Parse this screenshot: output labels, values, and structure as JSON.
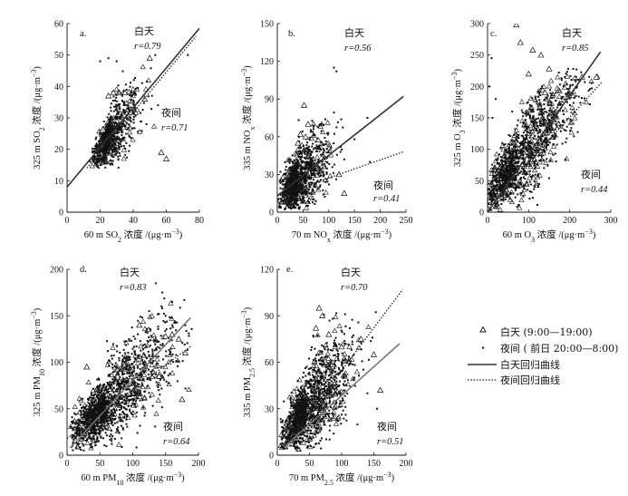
{
  "legend": {
    "day_marker_label": "白天 (9:00—19:00)",
    "night_marker_label": "夜间 ( 前日 20:00—8:00)",
    "day_line_label": "白天回归曲线",
    "night_line_label": "夜间回归曲线",
    "day_marker_icon": "triangle-open-icon",
    "night_marker_icon": "small-square-dot-icon"
  },
  "colors": {
    "day_line": "#333333",
    "night_line": "#222222",
    "marker": "#111111"
  },
  "chart_data": [
    {
      "type": "scatter",
      "panel_label": "a.",
      "xlabel": "60 m SO₂ 浓度 /(μg·m⁻³)",
      "xlabel_parts": {
        "pre": "60 m SO",
        "sub": "2",
        "post": " 浓度 /(μg·m",
        "sup": "−3",
        "end": ")"
      },
      "ylabel": "325 m SO₂ 浓度 /(μg·m⁻³)",
      "ylabel_parts": {
        "pre": "325 m SO",
        "sub": "2",
        "post": " 浓度 /(μg·m",
        "sup": "−3",
        "end": ")"
      },
      "xlim": [
        0,
        80
      ],
      "ylim": [
        0,
        60
      ],
      "xticks": [
        "0",
        "20",
        "40",
        "60",
        "80"
      ],
      "yticks": [
        "0",
        "10",
        "20",
        "30",
        "40",
        "50",
        "60"
      ],
      "day_label": "白天",
      "day_r": "r=0.79",
      "night_label": "夜间",
      "night_r": "r=0.71",
      "day_fit": {
        "x0": 0,
        "y0": 8,
        "x1": 80,
        "y1": 58.5
      },
      "night_fit": {
        "x0": 12,
        "y0": 14,
        "x1": 78,
        "y1": 56
      },
      "cloud": {
        "cx": 26,
        "cy": 24,
        "sx": 6,
        "sy": 5,
        "rho": 0.7,
        "n_night": 520,
        "n_day": 160,
        "xmin": 13,
        "xmax": 60,
        "ymin": 14,
        "ymax": 50
      },
      "outliers_day": [
        [
          50,
          49
        ],
        [
          25,
          37
        ],
        [
          47,
          36
        ],
        [
          60,
          17
        ],
        [
          57,
          19
        ],
        [
          28,
          38
        ],
        [
          35,
          38
        ]
      ],
      "outliers_night": [
        [
          25,
          49
        ],
        [
          30,
          48
        ],
        [
          73,
          50
        ],
        [
          55,
          34
        ],
        [
          48,
          28
        ],
        [
          20,
          48
        ]
      ]
    },
    {
      "type": "scatter",
      "panel_label": "b.",
      "xlabel": "70 m NOₓ 浓度 /(μg·m⁻³)",
      "xlabel_parts": {
        "pre": "70 m NO",
        "sub": "x",
        "post": " 浓度 /(μg·m",
        "sup": "−3",
        "end": ")"
      },
      "ylabel": "335 m NOₓ 浓度 /(μg·m⁻³)",
      "ylabel_parts": {
        "pre": "335 m NO",
        "sub": "x",
        "post": " 浓度 /(μg·m",
        "sup": "−3",
        "end": ")"
      },
      "xlim": [
        0,
        250
      ],
      "ylim": [
        0,
        150
      ],
      "xticks": [
        "0",
        "50",
        "100",
        "150",
        "200",
        "250"
      ],
      "yticks": [
        "0",
        "30",
        "60",
        "90",
        "120",
        "150"
      ],
      "day_label": "白天",
      "day_r": "r=0.56",
      "night_label": "夜间",
      "night_r": "r=0.41",
      "day_fit": {
        "x0": 0,
        "y0": 13,
        "x1": 245,
        "y1": 92
      },
      "night_fit": {
        "x0": 0,
        "y0": 13,
        "x1": 245,
        "y1": 48
      },
      "cloud": {
        "cx": 40,
        "cy": 25,
        "sx": 20,
        "sy": 12,
        "rho": 0.55,
        "n_night": 750,
        "n_day": 220,
        "xmin": 2,
        "xmax": 160,
        "ymin": 2,
        "ymax": 80
      },
      "outliers_day": [
        [
          52,
          85
        ],
        [
          60,
          70
        ],
        [
          45,
          62
        ],
        [
          55,
          60
        ],
        [
          40,
          55
        ],
        [
          130,
          15
        ],
        [
          120,
          30
        ]
      ],
      "outliers_night": [
        [
          110,
          115
        ],
        [
          115,
          112
        ],
        [
          175,
          75
        ],
        [
          150,
          58
        ],
        [
          100,
          48
        ],
        [
          130,
          42
        ],
        [
          180,
          40
        ]
      ]
    },
    {
      "type": "scatter",
      "panel_label": "c.",
      "xlabel": "60 m O₃ 浓度 /(μg·m⁻³)",
      "xlabel_parts": {
        "pre": "60 m O",
        "sub": "3",
        "post": " 浓度 /(μg·m",
        "sup": "−3",
        "end": ")"
      },
      "ylabel": "325 m O₃ 浓度 /(μg·m⁻³)",
      "ylabel_parts": {
        "pre": "325 m O",
        "sub": "3",
        "post": " 浓度 /(μg·m",
        "sup": "−3",
        "end": ")"
      },
      "xlim": [
        0,
        300
      ],
      "ylim": [
        0,
        300
      ],
      "xticks": [
        "0",
        "100",
        "200",
        "300"
      ],
      "yticks": [
        "0",
        "50",
        "100",
        "150",
        "200",
        "250",
        "300"
      ],
      "day_label": "白天",
      "day_r": "r=0.85",
      "night_label": "夜间",
      "night_r": "r=0.44",
      "day_fit": {
        "x0": 0,
        "y0": 0,
        "x1": 275,
        "y1": 255
      },
      "night_fit": {
        "x0": 0,
        "y0": 8,
        "x1": 280,
        "y1": 208
      },
      "cloud": {
        "cx": 70,
        "cy": 80,
        "sx": 50,
        "sy": 45,
        "rho": 0.85,
        "n_night": 900,
        "n_day": 320,
        "xmin": 2,
        "xmax": 270,
        "ymin": 2,
        "ymax": 230
      },
      "outliers_day": [
        [
          70,
          298
        ],
        [
          80,
          270
        ],
        [
          130,
          250
        ],
        [
          150,
          228
        ],
        [
          140,
          190
        ],
        [
          100,
          220
        ],
        [
          265,
          215
        ],
        [
          230,
          215
        ],
        [
          110,
          258
        ]
      ],
      "outliers_night": [
        [
          10,
          245
        ],
        [
          5,
          200
        ],
        [
          20,
          180
        ],
        [
          60,
          160
        ],
        [
          12,
          150
        ]
      ]
    },
    {
      "type": "scatter",
      "panel_label": "d.",
      "xlabel": "60 m PM₁₀ 浓度 /(μg·m⁻³)",
      "xlabel_parts": {
        "pre": "60 m PM",
        "sub": "10",
        "post": " 浓度 /(μg·m",
        "sup": "−3",
        "end": ")"
      },
      "ylabel": "325 m PM₁₀ 浓度 /(μg·m⁻³)",
      "ylabel_parts": {
        "pre": "325 m PM",
        "sub": "10",
        "post": " 浓度 /(μg·m",
        "sup": "−3",
        "end": ")"
      },
      "xlim": [
        0,
        200
      ],
      "ylim": [
        0,
        200
      ],
      "xticks": [
        "0",
        "50",
        "100",
        "150",
        "200"
      ],
      "yticks": [
        "0",
        "50",
        "100",
        "150",
        "200"
      ],
      "day_label": "白天",
      "day_r": "r=0.83",
      "night_label": "夜间",
      "night_r": "r=0.64",
      "day_fit": {
        "x0": 5,
        "y0": 8,
        "x1": 188,
        "y1": 148
      },
      "night_fit": {
        "x0": 0,
        "y0": 18,
        "x1": 190,
        "y1": 118
      },
      "cloud": {
        "cx": 60,
        "cy": 55,
        "sx": 32,
        "sy": 25,
        "rho": 0.8,
        "n_night": 1100,
        "n_day": 320,
        "xmin": 5,
        "xmax": 190,
        "ymin": 5,
        "ymax": 170
      },
      "outliers_day": [
        [
          150,
          128
        ],
        [
          160,
          130
        ],
        [
          170,
          125
        ],
        [
          180,
          110
        ],
        [
          30,
          95
        ],
        [
          110,
          140
        ],
        [
          175,
          60
        ],
        [
          140,
          85
        ]
      ],
      "outliers_night": [
        [
          135,
          185
        ],
        [
          145,
          175
        ],
        [
          160,
          165
        ],
        [
          125,
          155
        ],
        [
          150,
          150
        ]
      ]
    },
    {
      "type": "scatter",
      "panel_label": "e.",
      "xlabel": "70 m PM₂.₅ 浓度 /(μg·m⁻³)",
      "xlabel_parts": {
        "pre": "70 m PM",
        "sub": "2.5",
        "post": " 浓度 /(μg·m",
        "sup": "−3",
        "end": ")"
      },
      "ylabel": "335 m PM₂.₅ 浓度 /(μg·m⁻³)",
      "ylabel_parts": {
        "pre": "335 m PM",
        "sub": "2.5",
        "post": " 浓度 /(μg·m",
        "sup": "−3",
        "end": ")"
      },
      "xlim": [
        0,
        200
      ],
      "ylim": [
        0,
        120
      ],
      "xticks": [
        "0",
        "50",
        "100",
        "150",
        "200"
      ],
      "yticks": [
        "0",
        "30",
        "60",
        "90",
        "120"
      ],
      "day_label": "白天",
      "day_r": "r=0.70",
      "night_label": "夜间",
      "night_r": "r=0.51",
      "day_fit": {
        "x0": 10,
        "y0": 5,
        "x1": 190,
        "y1": 72
      },
      "night_fit": {
        "x0": 10,
        "y0": 5,
        "x1": 195,
        "y1": 107
      },
      "cloud": {
        "cx": 45,
        "cy": 30,
        "sx": 22,
        "sy": 14,
        "rho": 0.7,
        "n_night": 1000,
        "n_day": 300,
        "xmin": 5,
        "xmax": 165,
        "ymin": 3,
        "ymax": 95
      },
      "outliers_day": [
        [
          65,
          95
        ],
        [
          70,
          90
        ],
        [
          80,
          78
        ],
        [
          100,
          70
        ],
        [
          130,
          75
        ],
        [
          150,
          65
        ],
        [
          160,
          42
        ],
        [
          60,
          82
        ]
      ],
      "outliers_night": [
        [
          100,
          60
        ],
        [
          90,
          58
        ],
        [
          120,
          50
        ],
        [
          140,
          40
        ],
        [
          155,
          30
        ]
      ]
    }
  ]
}
